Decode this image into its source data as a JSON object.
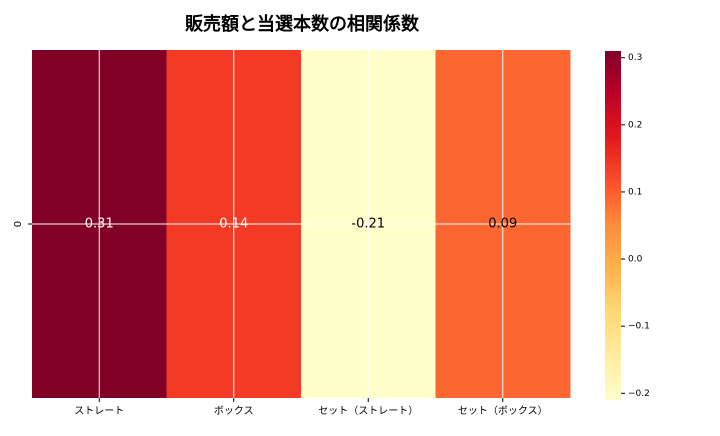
{
  "chart_data": {
    "type": "heatmap",
    "title": "販売額と当選本数の相関係数",
    "categories": [
      "ストレート",
      "ボックス",
      "セット（ストレート）",
      "セット（ボックス）"
    ],
    "rows": [
      "0"
    ],
    "values": [
      0.31,
      0.14,
      -0.21,
      0.09
    ],
    "clim": [
      -0.21,
      0.31
    ],
    "colormap": [
      "#ffffcc",
      "#ffeda0",
      "#fed976",
      "#feb24c",
      "#fd8d3c",
      "#fc4e2a",
      "#e31a1c",
      "#bd0026",
      "#800026"
    ],
    "cticks": [
      {
        "value": -0.2,
        "label": "−0.2"
      },
      {
        "value": -0.1,
        "label": "−0.1"
      },
      {
        "value": 0,
        "label": "0.0"
      },
      0.1,
      0.2,
      0.3
    ],
    "grid": true
  }
}
